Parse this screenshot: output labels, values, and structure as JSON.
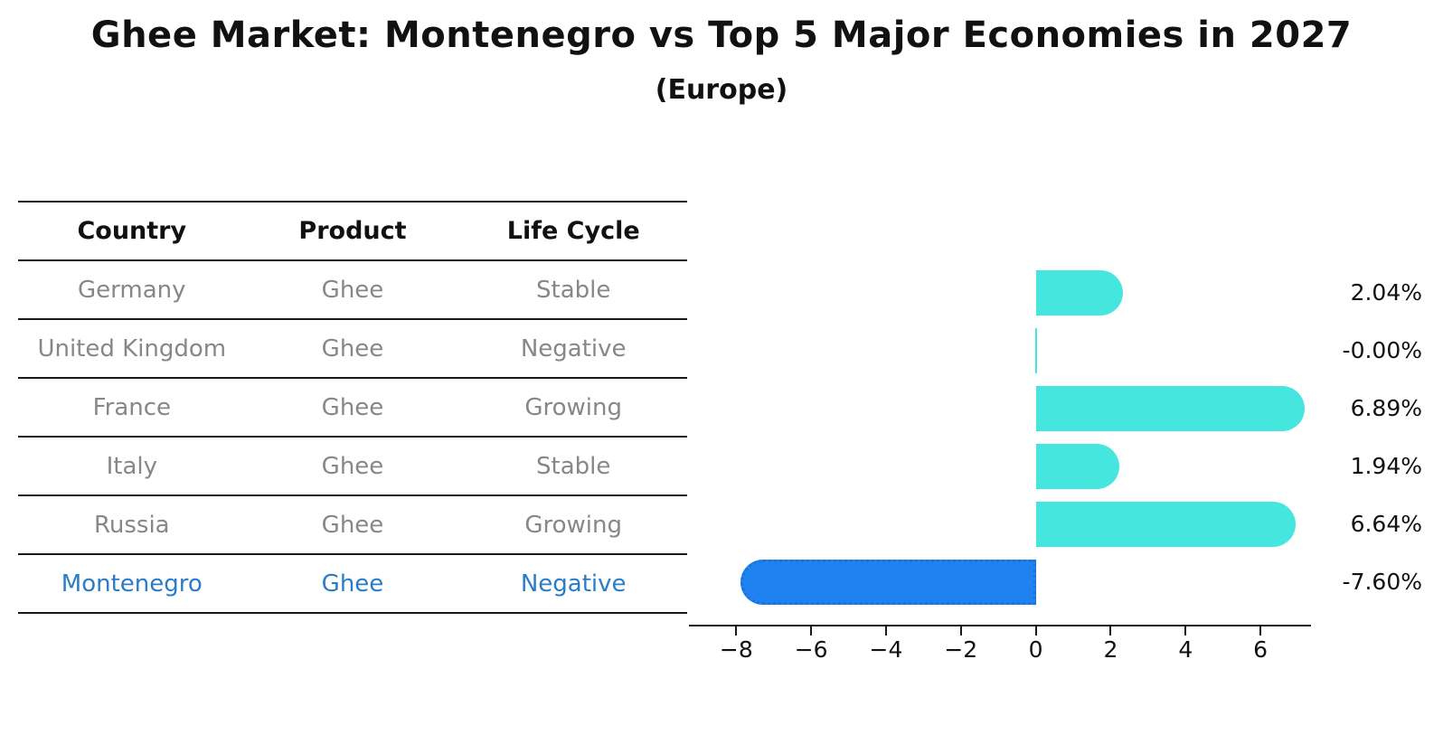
{
  "title": "Ghee Market: Montenegro vs Top 5 Major Economies in 2027",
  "subtitle": "(Europe)",
  "table": {
    "headers": [
      "Country",
      "Product",
      "Life Cycle"
    ],
    "rows": [
      {
        "country": "Germany",
        "product": "Ghee",
        "life_cycle": "Stable",
        "highlight": false
      },
      {
        "country": "United Kingdom",
        "product": "Ghee",
        "life_cycle": "Negative",
        "highlight": false
      },
      {
        "country": "France",
        "product": "Ghee",
        "life_cycle": "Growing",
        "highlight": false
      },
      {
        "country": "Italy",
        "product": "Ghee",
        "life_cycle": "Stable",
        "highlight": false
      },
      {
        "country": "Russia",
        "product": "Ghee",
        "life_cycle": "Growing",
        "highlight": false
      },
      {
        "country": "Montenegro",
        "product": "Ghee",
        "life_cycle": "Negative",
        "highlight": true
      }
    ]
  },
  "chart_data": {
    "type": "bar",
    "orientation": "horizontal",
    "categories": [
      "Germany",
      "United Kingdom",
      "France",
      "Italy",
      "Russia",
      "Montenegro"
    ],
    "values": [
      2.04,
      -0.0,
      6.89,
      1.94,
      6.64,
      -7.6
    ],
    "value_labels": [
      "2.04%",
      "-0.00%",
      "6.89%",
      "1.94%",
      "6.64%",
      "-7.60%"
    ],
    "xticks": [
      -8,
      -6,
      -4,
      -2,
      0,
      2,
      4,
      6
    ],
    "xtick_labels": [
      "−8",
      "−6",
      "−4",
      "−2",
      "0",
      "2",
      "4",
      "6"
    ],
    "xlim": [
      -8.95,
      7.35
    ],
    "grid": false,
    "legend": null,
    "bar_color": "#45e6de",
    "highlight_color": "#1e82f0",
    "highlight_index": 5,
    "highlight_style": "dotted-border"
  },
  "colors": {
    "title_text": "#111111",
    "table_text": "#878787",
    "highlight_text": "#2a7cc8",
    "axis": "#1a1a1a"
  }
}
